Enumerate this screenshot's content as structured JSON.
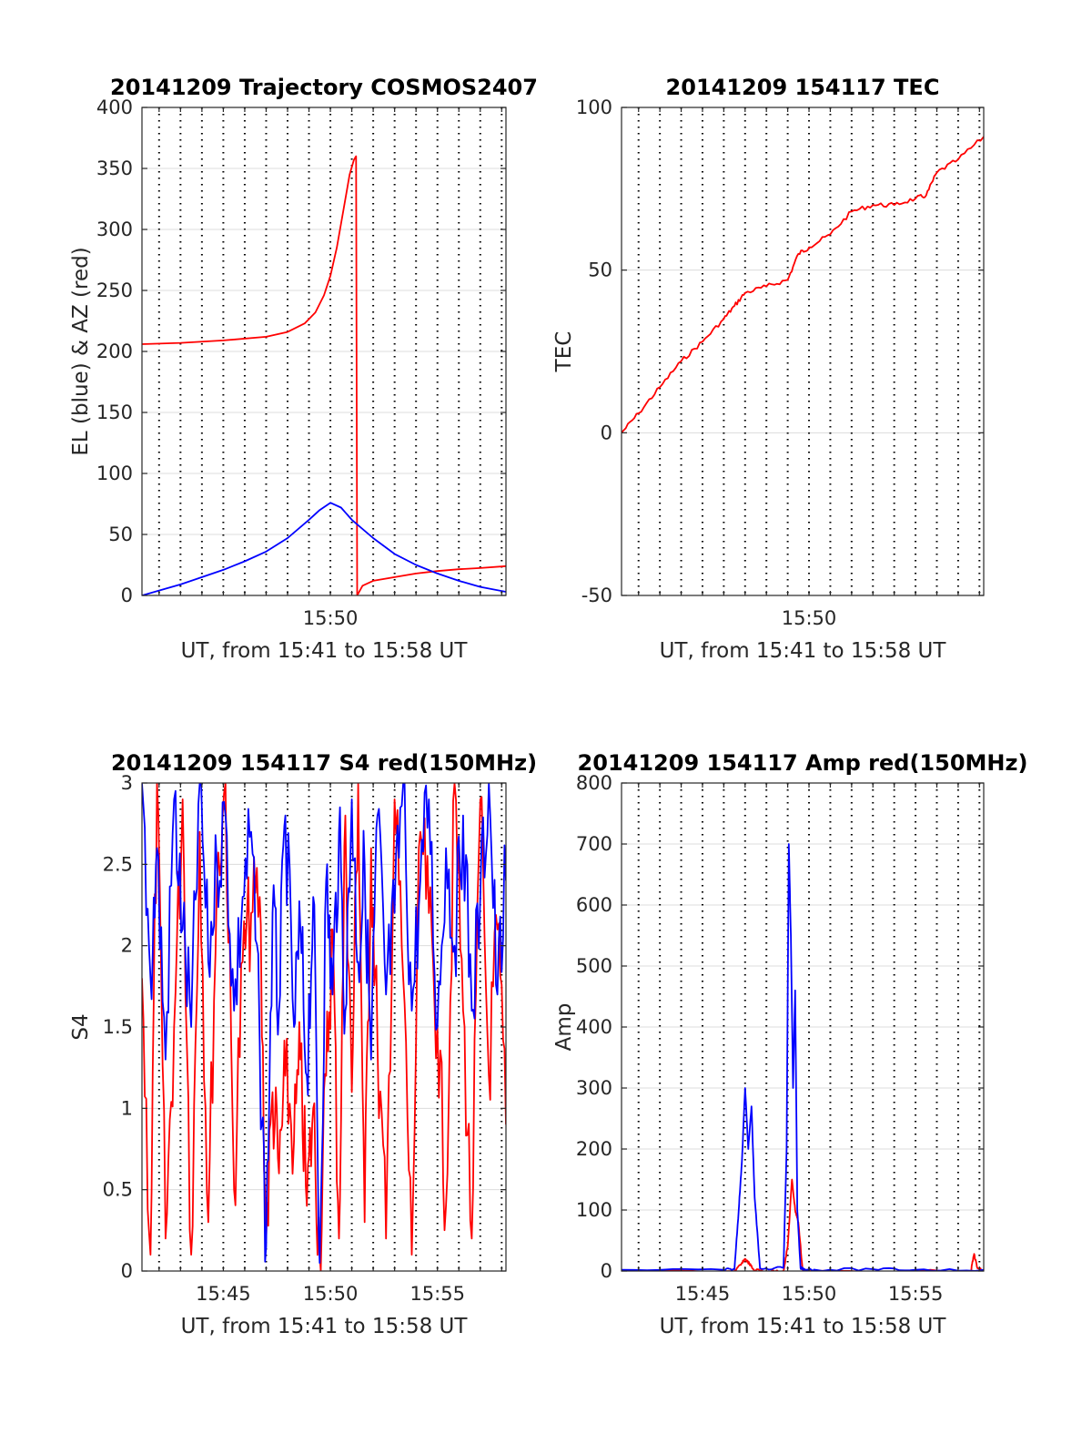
{
  "colors": {
    "red_trace": "#ff0000",
    "blue_trace": "#0000ff",
    "axis": "#262626",
    "grid": "#dcdcdc"
  },
  "chart_data": [
    {
      "type": "line",
      "title": "20141209 Trajectory COSMOS2407",
      "xlabel": "UT, from 15:41 to 15:58 UT",
      "ylabel": "EL (blue) & AZ (red)",
      "xlim_minutes": [
        941.2,
        958.2
      ],
      "x_tick_labels": [
        {
          "minute": 950,
          "label": "15:50"
        }
      ],
      "ylim": [
        0,
        400
      ],
      "y_ticks": [
        0,
        50,
        100,
        150,
        200,
        250,
        300,
        350,
        400
      ],
      "grid": "dotted vertical every 1 min, light horizontal",
      "series": [
        {
          "color": "red",
          "x_minutes": [
            941.2,
            943,
            945,
            947,
            948,
            948.8,
            949.3,
            949.7,
            950,
            950.3,
            950.6,
            950.9,
            951.1,
            951.2,
            951.25,
            951.5,
            952,
            953,
            954,
            955,
            956,
            957,
            958.2
          ],
          "values": [
            206,
            207,
            209,
            212,
            216,
            223,
            232,
            246,
            262,
            285,
            315,
            345,
            357,
            360,
            0,
            8,
            12,
            15,
            18,
            20,
            21.5,
            22.5,
            24
          ]
        },
        {
          "color": "blue",
          "x_minutes": [
            941.2,
            942,
            943,
            944,
            945,
            946,
            947,
            948,
            949,
            949.5,
            950,
            950.5,
            951,
            952,
            953,
            954,
            955,
            956,
            957,
            958.2
          ],
          "values": [
            0,
            4,
            9,
            15,
            21,
            28,
            36,
            47,
            62,
            70,
            76,
            72,
            62,
            47,
            34,
            25,
            18,
            12,
            7,
            3
          ]
        }
      ]
    },
    {
      "type": "line",
      "title": "20141209 154117 TEC",
      "xlabel": "UT, from 15:41 to 15:58 UT",
      "ylabel": "TEC",
      "xlim_minutes": [
        941.2,
        958.2
      ],
      "x_tick_labels": [
        {
          "minute": 950,
          "label": "15:50"
        }
      ],
      "ylim": [
        -50,
        100
      ],
      "y_ticks": [
        -50,
        0,
        50,
        100
      ],
      "grid": "dotted vertical every 1 min, light horizontal",
      "series": [
        {
          "color": "red",
          "x_minutes": [
            941.2,
            942,
            943,
            944,
            945,
            946,
            946.5,
            947,
            948,
            949,
            949.5,
            950,
            951,
            952,
            953,
            954,
            955,
            955.5,
            956,
            957,
            958.2
          ],
          "values": [
            0,
            6,
            14,
            22,
            28,
            35,
            39,
            43,
            45,
            47,
            55,
            57,
            61,
            68,
            70,
            70,
            72,
            73,
            80,
            84,
            91
          ]
        }
      ]
    },
    {
      "type": "line",
      "title": "20141209 154117 S4 red(150MHz)",
      "xlabel": "UT, from 15:41 to 15:58 UT",
      "ylabel": "S4",
      "xlim_minutes": [
        941.2,
        958.2
      ],
      "x_tick_labels": [
        {
          "minute": 945,
          "label": "15:45"
        },
        {
          "minute": 950,
          "label": "15:50"
        },
        {
          "minute": 955,
          "label": "15:55"
        }
      ],
      "ylim": [
        0,
        3
      ],
      "y_ticks": [
        0,
        0.5,
        1,
        1.5,
        2,
        2.5,
        3
      ],
      "grid": "dotted vertical every 1 min, light horizontal",
      "series": [
        {
          "color": "red",
          "x_minutes": [
            941.2,
            941.6,
            941.9,
            942.3,
            942.7,
            943.1,
            943.5,
            943.9,
            944.3,
            944.7,
            945.1,
            945.5,
            945.9,
            946.3,
            946.7,
            947.0,
            947.3,
            947.6,
            947.9,
            948.3,
            948.6,
            948.9,
            949.2,
            949.5,
            949.8,
            950.1,
            950.4,
            950.7,
            951.0,
            951.3,
            951.6,
            951.9,
            952.2,
            952.6,
            953.0,
            953.4,
            953.8,
            954.2,
            954.6,
            955.0,
            955.4,
            955.8,
            956.2,
            956.6,
            957.0,
            957.4,
            957.8,
            958.2
          ],
          "values": [
            1.8,
            0.1,
            3.0,
            0.2,
            1.5,
            2.9,
            0.1,
            2.7,
            0.3,
            2.4,
            3.0,
            0.5,
            1.9,
            2.2,
            2.3,
            0.2,
            1.1,
            0.6,
            1.2,
            0.8,
            1.3,
            0.4,
            1.0,
            0.1,
            1.2,
            2.1,
            0.2,
            2.8,
            1.1,
            3.0,
            0.3,
            2.6,
            1.4,
            0.2,
            2.9,
            1.8,
            0.1,
            2.7,
            2.2,
            1.5,
            0.4,
            3.0,
            1.6,
            0.2,
            2.9,
            1.2,
            2.1,
            0.9
          ]
        },
        {
          "color": "blue",
          "x_minutes": [
            941.2,
            941.6,
            941.9,
            942.3,
            942.7,
            943.1,
            943.5,
            943.9,
            944.3,
            944.7,
            945.1,
            945.5,
            945.9,
            946.3,
            946.7,
            947.0,
            947.3,
            947.6,
            947.9,
            948.3,
            948.6,
            948.9,
            949.2,
            949.5,
            949.8,
            950.1,
            950.4,
            950.7,
            951.0,
            951.3,
            951.6,
            951.9,
            952.2,
            952.6,
            953.0,
            953.4,
            953.8,
            954.2,
            954.6,
            955.0,
            955.4,
            955.8,
            956.2,
            956.6,
            957.0,
            957.4,
            957.8,
            958.2
          ],
          "values": [
            3.0,
            1.8,
            2.6,
            1.3,
            2.9,
            2.1,
            1.5,
            3.0,
            1.9,
            2.5,
            2.8,
            1.6,
            2.3,
            2.7,
            1.4,
            0.15,
            2.2,
            1.6,
            2.8,
            1.5,
            2.1,
            1.2,
            2.3,
            0.05,
            2.4,
            1.7,
            2.7,
            1.6,
            2.9,
            1.9,
            2.5,
            1.3,
            2.8,
            1.7,
            2.2,
            3.0,
            1.6,
            2.4,
            2.9,
            1.5,
            2.6,
            2.0,
            2.8,
            1.6,
            2.3,
            3.0,
            1.7,
            2.4
          ]
        }
      ]
    },
    {
      "type": "line",
      "title": "20141209 154117 Amp red(150MHz)",
      "xlabel": "UT, from 15:41 to 15:58 UT",
      "ylabel": "Amp",
      "xlim_minutes": [
        941.2,
        958.2
      ],
      "x_tick_labels": [
        {
          "minute": 945,
          "label": "15:45"
        },
        {
          "minute": 950,
          "label": "15:50"
        },
        {
          "minute": 955,
          "label": "15:55"
        }
      ],
      "ylim": [
        0,
        800
      ],
      "y_ticks": [
        0,
        100,
        200,
        300,
        400,
        500,
        600,
        700,
        800
      ],
      "grid": "dotted vertical every 1 min, light horizontal",
      "series": [
        {
          "color": "red",
          "x_minutes": [
            941.2,
            946.5,
            946.8,
            947.0,
            947.2,
            947.4,
            948.0,
            948.8,
            949.0,
            949.2,
            949.35,
            949.5,
            949.7,
            950.0,
            957.6,
            957.75,
            957.9,
            958.2
          ],
          "values": [
            0,
            0,
            10,
            20,
            12,
            2,
            0,
            0,
            40,
            150,
            100,
            80,
            2,
            0,
            0,
            28,
            5,
            0
          ]
        },
        {
          "color": "blue",
          "x_minutes": [
            941.2,
            946.0,
            946.5,
            946.7,
            946.85,
            947.0,
            947.15,
            947.3,
            947.45,
            947.7,
            948.8,
            948.95,
            949.05,
            949.15,
            949.25,
            949.35,
            949.45,
            949.6,
            949.8,
            950.3,
            953.0,
            955.0,
            958.2
          ],
          "values": [
            2,
            2,
            3,
            100,
            180,
            300,
            200,
            270,
            120,
            4,
            5,
            200,
            700,
            550,
            300,
            460,
            100,
            5,
            3,
            2,
            3,
            2,
            2
          ]
        }
      ]
    }
  ]
}
